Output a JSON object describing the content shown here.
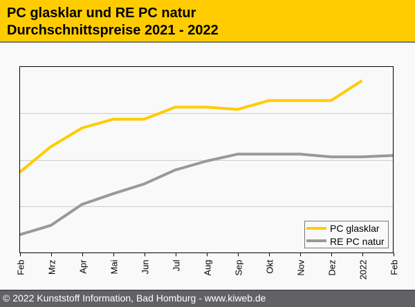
{
  "header": {
    "title_line1": "PC glasklar und RE PC natur",
    "title_line2": "Durchschnittspreise 2021 - 2022"
  },
  "footer": {
    "text": "© 2022 Kunststoff Information, Bad Homburg - www.kiweb.de"
  },
  "colors": {
    "header_bg": "#ffcc00",
    "series_yellow": "#ffcc00",
    "series_gray": "#999999",
    "footer_bg": "#626266"
  },
  "chart_data": {
    "type": "line",
    "title": "PC glasklar und RE PC natur Durchschnittspreise 2021 - 2022",
    "xlabel": "",
    "ylabel": "",
    "x_ticks": [
      "Feb",
      "Mrz",
      "Apr",
      "Mai",
      "Jun",
      "Jul",
      "Aug",
      "Sep",
      "Okt",
      "Nov",
      "Dez",
      "2022",
      "Feb"
    ],
    "ylim": [
      0,
      4
    ],
    "y_gridlines": [
      1,
      2,
      3
    ],
    "grid": true,
    "legend_position": "bottom-right",
    "series": [
      {
        "name": "PC glasklar",
        "color": "#ffcc00",
        "values": [
          1.73,
          2.28,
          2.68,
          2.87,
          2.87,
          3.13,
          3.13,
          3.08,
          3.27,
          3.27,
          3.27,
          3.7,
          null
        ]
      },
      {
        "name": "RE PC natur",
        "color": "#999999",
        "values": [
          0.39,
          0.59,
          1.04,
          1.27,
          1.48,
          1.78,
          1.97,
          2.12,
          2.12,
          2.12,
          2.06,
          2.06,
          2.09
        ]
      }
    ]
  }
}
